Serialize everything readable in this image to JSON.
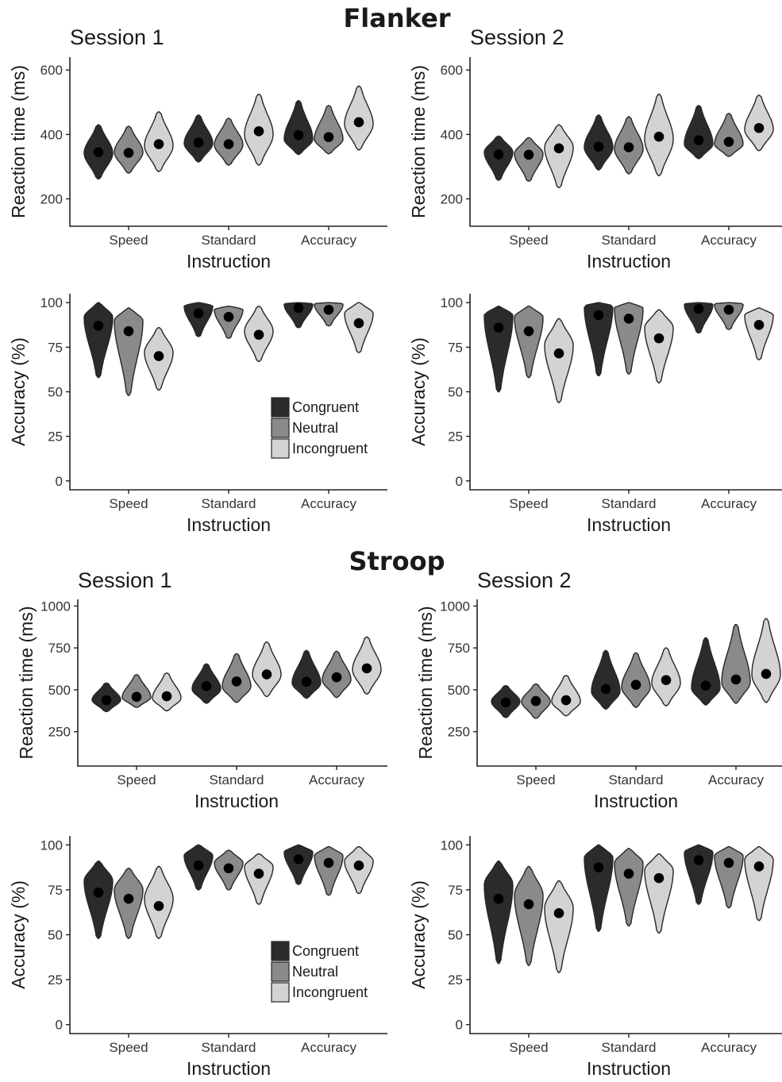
{
  "colors": {
    "Congruent": "#2b2b2b",
    "Neutral": "#8a8a8a",
    "Incongruent": "#d3d3d3"
  },
  "legend": {
    "items": [
      "Congruent",
      "Neutral",
      "Incongruent"
    ]
  },
  "sections": [
    {
      "title": "Flanker"
    },
    {
      "title": "Stroop"
    }
  ],
  "chart_data": [
    {
      "type": "violin",
      "section": "Flanker",
      "title": "Session 1",
      "xlabel": "Instruction",
      "ylabel": "Reaction time (ms)",
      "ylim": [
        115,
        640
      ],
      "yticks": [
        200,
        400,
        600
      ],
      "categories": [
        "Speed",
        "Standard",
        "Accuracy"
      ],
      "legend": "none",
      "series": [
        {
          "name": "Congruent",
          "mean": [
            345,
            375,
            398
          ],
          "min": [
            262,
            315,
            338
          ],
          "max": [
            430,
            460,
            505
          ],
          "peak": [
            342,
            372,
            385
          ]
        },
        {
          "name": "Neutral",
          "mean": [
            343,
            370,
            392
          ],
          "min": [
            280,
            305,
            340
          ],
          "max": [
            425,
            450,
            490
          ],
          "peak": [
            345,
            368,
            385
          ]
        },
        {
          "name": "Incongruent",
          "mean": [
            370,
            410,
            438
          ],
          "min": [
            285,
            305,
            352
          ],
          "max": [
            470,
            525,
            550
          ],
          "peak": [
            365,
            400,
            432
          ]
        }
      ]
    },
    {
      "type": "violin",
      "section": "Flanker",
      "title": "Session 2",
      "xlabel": "Instruction",
      "ylabel": "Reaction time (ms)",
      "ylim": [
        115,
        640
      ],
      "yticks": [
        200,
        400,
        600
      ],
      "categories": [
        "Speed",
        "Standard",
        "Accuracy"
      ],
      "legend": "none",
      "series": [
        {
          "name": "Congruent",
          "mean": [
            338,
            362,
            382
          ],
          "min": [
            258,
            290,
            325
          ],
          "max": [
            395,
            460,
            490
          ],
          "peak": [
            345,
            360,
            370
          ]
        },
        {
          "name": "Neutral",
          "mean": [
            337,
            360,
            377
          ],
          "min": [
            255,
            278,
            332
          ],
          "max": [
            390,
            455,
            465
          ],
          "peak": [
            340,
            355,
            370
          ]
        },
        {
          "name": "Incongruent",
          "mean": [
            357,
            393,
            420
          ],
          "min": [
            235,
            272,
            350
          ],
          "max": [
            430,
            525,
            522
          ],
          "peak": [
            360,
            385,
            415
          ]
        }
      ]
    },
    {
      "type": "violin",
      "section": "Flanker",
      "title": "",
      "xlabel": "Instruction",
      "ylabel": "Accuracy (%)",
      "ylim": [
        -5,
        105
      ],
      "yticks": [
        0,
        25,
        50,
        75,
        100
      ],
      "categories": [
        "Speed",
        "Standard",
        "Accuracy"
      ],
      "legend": "bottom-right",
      "series": [
        {
          "name": "Congruent",
          "mean": [
            87,
            94,
            97
          ],
          "min": [
            58,
            81,
            86
          ],
          "max": [
            100,
            100,
            100
          ],
          "peak": [
            92,
            98,
            99
          ]
        },
        {
          "name": "Neutral",
          "mean": [
            84,
            92,
            96
          ],
          "min": [
            48,
            80,
            87
          ],
          "max": [
            97,
            98,
            100
          ],
          "peak": [
            90,
            96,
            99
          ]
        },
        {
          "name": "Incongruent",
          "mean": [
            70,
            82,
            88.5
          ],
          "min": [
            51,
            67,
            72
          ],
          "max": [
            86,
            98,
            100
          ],
          "peak": [
            72,
            84,
            94
          ]
        }
      ]
    },
    {
      "type": "violin",
      "section": "Flanker",
      "title": "",
      "xlabel": "Instruction",
      "ylabel": "Accuracy (%)",
      "ylim": [
        -5,
        105
      ],
      "yticks": [
        0,
        25,
        50,
        75,
        100
      ],
      "categories": [
        "Speed",
        "Standard",
        "Accuracy"
      ],
      "legend": "none",
      "series": [
        {
          "name": "Congruent",
          "mean": [
            86,
            93,
            96.5
          ],
          "min": [
            50,
            59,
            83
          ],
          "max": [
            98,
            100,
            100
          ],
          "peak": [
            93,
            98,
            99
          ]
        },
        {
          "name": "Neutral",
          "mean": [
            84,
            91,
            96
          ],
          "min": [
            58,
            60,
            85
          ],
          "max": [
            98,
            100,
            100
          ],
          "peak": [
            92,
            97,
            99
          ]
        },
        {
          "name": "Incongruent",
          "mean": [
            71.5,
            80,
            87.5
          ],
          "min": [
            44,
            55,
            68
          ],
          "max": [
            91,
            96,
            97
          ],
          "peak": [
            76,
            86,
            93
          ]
        }
      ]
    },
    {
      "type": "violin",
      "section": "Stroop",
      "title": "Session 1",
      "xlabel": "Instruction",
      "ylabel": "Reaction time (ms)",
      "ylim": [
        45,
        1040
      ],
      "yticks": [
        250,
        500,
        750,
        1000
      ],
      "categories": [
        "Speed",
        "Standard",
        "Accuracy"
      ],
      "legend": "none",
      "series": [
        {
          "name": "Congruent",
          "mean": [
            438,
            522,
            548
          ],
          "min": [
            370,
            420,
            450
          ],
          "max": [
            540,
            655,
            735
          ],
          "peak": [
            440,
            505,
            540
          ]
        },
        {
          "name": "Neutral",
          "mean": [
            458,
            550,
            575
          ],
          "min": [
            395,
            425,
            455
          ],
          "max": [
            590,
            715,
            730
          ],
          "peak": [
            455,
            520,
            560
          ]
        },
        {
          "name": "Incongruent",
          "mean": [
            462,
            592,
            628
          ],
          "min": [
            375,
            460,
            475
          ],
          "max": [
            600,
            785,
            815
          ],
          "peak": [
            450,
            590,
            620
          ]
        }
      ]
    },
    {
      "type": "violin",
      "section": "Stroop",
      "title": "Session 2",
      "xlabel": "Instruction",
      "ylabel": "Reaction time (ms)",
      "ylim": [
        45,
        1040
      ],
      "yticks": [
        250,
        500,
        750,
        1000
      ],
      "categories": [
        "Speed",
        "Standard",
        "Accuracy"
      ],
      "legend": "none",
      "series": [
        {
          "name": "Congruent",
          "mean": [
            425,
            505,
            525
          ],
          "min": [
            335,
            385,
            410
          ],
          "max": [
            525,
            735,
            810
          ],
          "peak": [
            430,
            490,
            510
          ]
        },
        {
          "name": "Neutral",
          "mean": [
            433,
            530,
            562
          ],
          "min": [
            330,
            395,
            420
          ],
          "max": [
            535,
            720,
            890
          ],
          "peak": [
            430,
            515,
            545
          ]
        },
        {
          "name": "Incongruent",
          "mean": [
            438,
            558,
            595
          ],
          "min": [
            345,
            405,
            425
          ],
          "max": [
            585,
            750,
            925
          ],
          "peak": [
            430,
            540,
            590
          ]
        }
      ]
    },
    {
      "type": "violin",
      "section": "Stroop",
      "title": "",
      "xlabel": "Instruction",
      "ylabel": "Accuracy (%)",
      "ylim": [
        -5,
        105
      ],
      "yticks": [
        0,
        25,
        50,
        75,
        100
      ],
      "categories": [
        "Speed",
        "Standard",
        "Accuracy"
      ],
      "legend": "bottom-right",
      "series": [
        {
          "name": "Congruent",
          "mean": [
            73.5,
            88.5,
            92
          ],
          "min": [
            48,
            75,
            78
          ],
          "max": [
            91,
            100,
            100
          ],
          "peak": [
            80,
            94,
            96
          ]
        },
        {
          "name": "Neutral",
          "mean": [
            70,
            87,
            90
          ],
          "min": [
            48,
            75,
            72
          ],
          "max": [
            87,
            97,
            99
          ],
          "peak": [
            75,
            90,
            94
          ]
        },
        {
          "name": "Incongruent",
          "mean": [
            66,
            84,
            88.5
          ],
          "min": [
            48,
            67,
            73
          ],
          "max": [
            88,
            95,
            99
          ],
          "peak": [
            70,
            88,
            91
          ]
        }
      ]
    },
    {
      "type": "violin",
      "section": "Stroop",
      "title": "",
      "xlabel": "Instruction",
      "ylabel": "Accuracy (%)",
      "ylim": [
        -5,
        105
      ],
      "yticks": [
        0,
        25,
        50,
        75,
        100
      ],
      "categories": [
        "Speed",
        "Standard",
        "Accuracy"
      ],
      "legend": "none",
      "series": [
        {
          "name": "Congruent",
          "mean": [
            70,
            87.5,
            91.5
          ],
          "min": [
            34,
            52,
            67
          ],
          "max": [
            91,
            100,
            100
          ],
          "peak": [
            78,
            93,
            96
          ]
        },
        {
          "name": "Neutral",
          "mean": [
            67,
            84,
            90
          ],
          "min": [
            33,
            55,
            65
          ],
          "max": [
            88,
            98,
            99
          ],
          "peak": [
            72,
            90,
            94
          ]
        },
        {
          "name": "Incongruent",
          "mean": [
            62,
            81.5,
            88
          ],
          "min": [
            29,
            51,
            58
          ],
          "max": [
            80,
            95,
            99
          ],
          "peak": [
            65,
            86,
            92
          ]
        }
      ]
    }
  ]
}
